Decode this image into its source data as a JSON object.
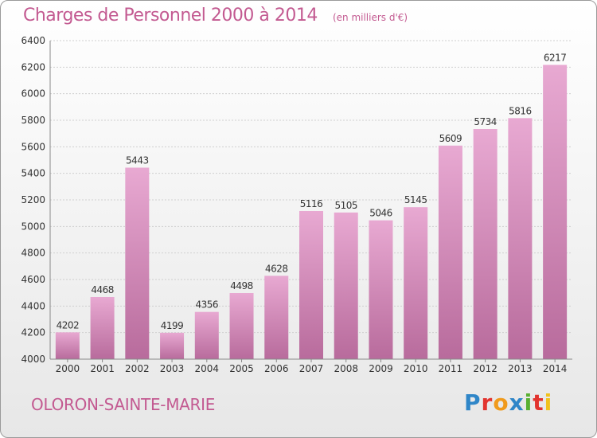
{
  "header": {
    "title": "Charges de Personnel 2000 à 2014",
    "unit": "(en milliers d'€)"
  },
  "footer": {
    "commune": "OLORON-SAINTE-MARIE",
    "brand_letters": [
      "P",
      "r",
      "o",
      "x",
      "i",
      "t",
      "i"
    ],
    "brand_colors": [
      "#2f86c8",
      "#e2342e",
      "#f09a1c",
      "#2f86c8",
      "#59b032",
      "#e2342e",
      "#f0c21c"
    ]
  },
  "colors": {
    "bar_top": "#e8a9d2",
    "bar_bottom": "#b86b9c",
    "title": "#c35a91",
    "grid": "#cfcfcf",
    "axis_text": "#333333"
  },
  "chart_data": {
    "type": "bar",
    "categories": [
      "2000",
      "2001",
      "2002",
      "2003",
      "2004",
      "2005",
      "2006",
      "2007",
      "2008",
      "2009",
      "2010",
      "2011",
      "2012",
      "2013",
      "2014"
    ],
    "values": [
      4202,
      4468,
      5443,
      4199,
      4356,
      4498,
      4628,
      5116,
      5105,
      5046,
      5145,
      5609,
      5734,
      5816,
      6217
    ],
    "ylim": [
      4000,
      6400
    ],
    "yticks": [
      4000,
      4200,
      4400,
      4600,
      4800,
      5000,
      5200,
      5400,
      5600,
      5800,
      6000,
      6200,
      6400
    ],
    "grid": true,
    "data_labels": true
  }
}
